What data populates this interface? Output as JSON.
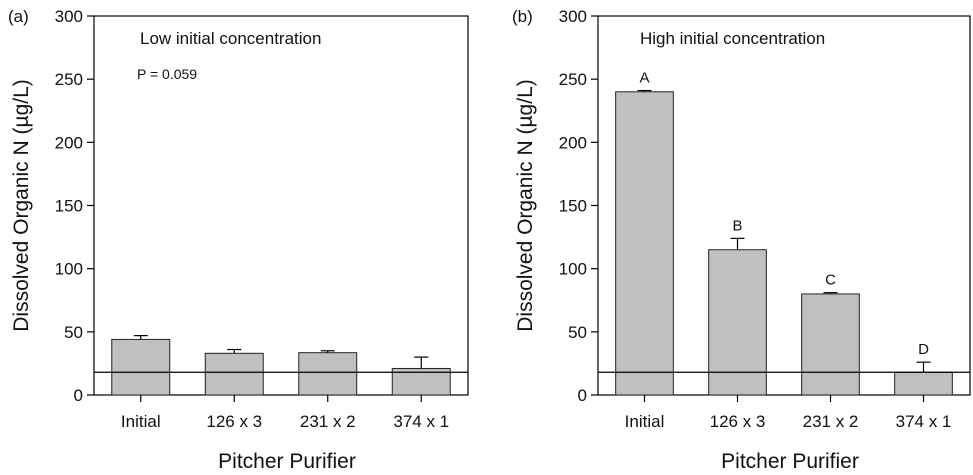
{
  "chart_data": [
    {
      "type": "bar",
      "panel_label": "(a)",
      "annotation": "Low initial concentration",
      "stat_text": "P = 0.059",
      "categories": [
        "Initial",
        "126 x 3",
        "231 x 2",
        "374 x 1"
      ],
      "values": [
        44,
        33,
        33.5,
        21
      ],
      "errors": [
        3,
        3,
        1.5,
        9
      ],
      "significance_letters": [
        "",
        "",
        "",
        ""
      ],
      "reference_line": 18,
      "xlabel": "Pitcher Purifier",
      "ylabel": "Dissolved Organic N (µg/L)",
      "ylim": [
        0,
        300
      ],
      "yticks": [
        0,
        50,
        100,
        150,
        200,
        250,
        300
      ],
      "bar_color": "#c0c0c0",
      "grid": false
    },
    {
      "type": "bar",
      "panel_label": "(b)",
      "annotation": "High initial concentration",
      "stat_text": "",
      "categories": [
        "Initial",
        "126 x 3",
        "231 x 2",
        "374 x 1"
      ],
      "values": [
        240,
        115,
        80,
        18
      ],
      "errors": [
        1,
        9,
        1,
        8
      ],
      "significance_letters": [
        "A",
        "B",
        "C",
        "D"
      ],
      "reference_line": 18,
      "xlabel": "Pitcher Purifier",
      "ylabel": "Dissolved Organic N (µg/L)",
      "ylim": [
        0,
        300
      ],
      "yticks": [
        0,
        50,
        100,
        150,
        200,
        250,
        300
      ],
      "bar_color": "#c0c0c0",
      "grid": false
    }
  ]
}
